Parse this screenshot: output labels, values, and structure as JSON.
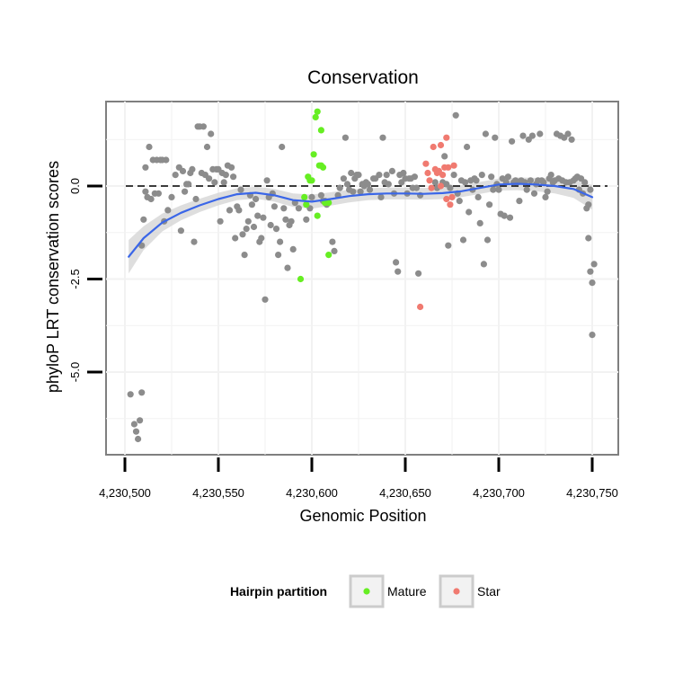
{
  "chart_data": {
    "type": "scatter",
    "title": "Conservation",
    "xlabel": "Genomic Position",
    "ylabel": "phyloP LRT conservation scores",
    "xlim": [
      4230500,
      4230750
    ],
    "ylim": [
      -7.2,
      2.4
    ],
    "x_ticks": [
      4230500,
      4230550,
      4230600,
      4230650,
      4230700,
      4230750
    ],
    "x_tick_labels": [
      "4,230,500",
      "4,230,550",
      "4,230,600",
      "4,230,650",
      "4,230,700",
      "4,230,750"
    ],
    "y_ticks": [
      0.0,
      -2.5,
      -5.0
    ],
    "y_tick_labels": [
      "0.0",
      "-2.5",
      "-5.0"
    ],
    "reference_line": {
      "y": 0.0,
      "style": "dashed"
    },
    "grid": true,
    "legend": {
      "title": "Hairpin partition",
      "position": "bottom",
      "entries": [
        {
          "label": "Mature",
          "color": "#66ee22"
        },
        {
          "label": "Star",
          "color": "#f07a70"
        }
      ]
    },
    "colors": {
      "other": "#8c8c8c",
      "mature": "#66ee22",
      "star": "#f07a70",
      "smooth": "#3a66e8",
      "band": "#d3d3d3"
    },
    "smooth_line": {
      "x": [
        4230502,
        4230510,
        4230520,
        4230530,
        4230540,
        4230550,
        4230560,
        4230570,
        4230580,
        4230590,
        4230600,
        4230610,
        4230620,
        4230630,
        4230640,
        4230650,
        4230660,
        4230670,
        4230680,
        4230690,
        4230700,
        4230710,
        4230720,
        4230730,
        4230740,
        4230750
      ],
      "y": [
        -1.9,
        -1.4,
        -0.98,
        -0.72,
        -0.52,
        -0.35,
        -0.22,
        -0.18,
        -0.25,
        -0.38,
        -0.42,
        -0.35,
        -0.27,
        -0.22,
        -0.2,
        -0.2,
        -0.21,
        -0.19,
        -0.14,
        -0.05,
        0.04,
        0.06,
        0.04,
        0.0,
        -0.08,
        -0.3
      ],
      "band_halfwidth": [
        0.45,
        0.32,
        0.24,
        0.2,
        0.18,
        0.17,
        0.16,
        0.16,
        0.17,
        0.18,
        0.19,
        0.18,
        0.17,
        0.16,
        0.16,
        0.16,
        0.16,
        0.16,
        0.16,
        0.16,
        0.16,
        0.17,
        0.18,
        0.2,
        0.24,
        0.33
      ]
    },
    "series": [
      {
        "name": "Other",
        "color": "#8c8c8c",
        "points": [
          [
            4230503,
            -5.6
          ],
          [
            4230505,
            -6.4
          ],
          [
            4230506,
            -6.6
          ],
          [
            4230507,
            -6.8
          ],
          [
            4230508,
            -6.3
          ],
          [
            4230509,
            -5.55
          ],
          [
            4230509,
            -1.6
          ],
          [
            4230510,
            -0.9
          ],
          [
            4230511,
            0.5
          ],
          [
            4230511,
            -0.15
          ],
          [
            4230512,
            -0.3
          ],
          [
            4230513,
            1.05
          ],
          [
            4230514,
            -0.35
          ],
          [
            4230515,
            0.7
          ],
          [
            4230516,
            -0.2
          ],
          [
            4230517,
            0.7
          ],
          [
            4230518,
            -0.2
          ],
          [
            4230519,
            0.7
          ],
          [
            4230520,
            0.7
          ],
          [
            4230521,
            -0.95
          ],
          [
            4230522,
            0.7
          ],
          [
            4230523,
            -0.65
          ],
          [
            4230525,
            -0.3
          ],
          [
            4230527,
            0.3
          ],
          [
            4230529,
            0.5
          ],
          [
            4230530,
            -1.2
          ],
          [
            4230531,
            0.4
          ],
          [
            4230532,
            -0.15
          ],
          [
            4230533,
            0.05
          ],
          [
            4230534,
            0.05
          ],
          [
            4230535,
            0.35
          ],
          [
            4230536,
            0.45
          ],
          [
            4230537,
            -1.5
          ],
          [
            4230538,
            -0.35
          ],
          [
            4230539,
            1.6
          ],
          [
            4230540,
            1.6
          ],
          [
            4230541,
            0.35
          ],
          [
            4230542,
            1.6
          ],
          [
            4230543,
            0.3
          ],
          [
            4230544,
            1.05
          ],
          [
            4230545,
            0.2
          ],
          [
            4230546,
            1.4
          ],
          [
            4230547,
            0.45
          ],
          [
            4230548,
            0.1
          ],
          [
            4230549,
            0.45
          ],
          [
            4230550,
            0.45
          ],
          [
            4230551,
            -0.95
          ],
          [
            4230552,
            0.35
          ],
          [
            4230553,
            0.1
          ],
          [
            4230554,
            0.3
          ],
          [
            4230555,
            0.55
          ],
          [
            4230556,
            -0.65
          ],
          [
            4230557,
            0.5
          ],
          [
            4230558,
            0.25
          ],
          [
            4230559,
            -1.4
          ],
          [
            4230560,
            -0.55
          ],
          [
            4230561,
            -0.65
          ],
          [
            4230562,
            -0.1
          ],
          [
            4230563,
            -1.3
          ],
          [
            4230564,
            -1.85
          ],
          [
            4230565,
            -1.15
          ],
          [
            4230566,
            -0.95
          ],
          [
            4230567,
            -0.25
          ],
          [
            4230568,
            -0.5
          ],
          [
            4230569,
            -1.1
          ],
          [
            4230570,
            -0.35
          ],
          [
            4230571,
            -0.8
          ],
          [
            4230572,
            -1.5
          ],
          [
            4230573,
            -1.4
          ],
          [
            4230574,
            -0.85
          ],
          [
            4230575,
            -3.05
          ],
          [
            4230576,
            0.15
          ],
          [
            4230577,
            -0.3
          ],
          [
            4230578,
            -1.05
          ],
          [
            4230579,
            -0.2
          ],
          [
            4230580,
            -0.55
          ],
          [
            4230581,
            -1.15
          ],
          [
            4230582,
            -1.85
          ],
          [
            4230583,
            -1.5
          ],
          [
            4230584,
            1.05
          ],
          [
            4230585,
            -0.6
          ],
          [
            4230586,
            -0.9
          ],
          [
            4230587,
            -2.2
          ],
          [
            4230588,
            -1.05
          ],
          [
            4230589,
            -0.95
          ],
          [
            4230590,
            -1.7
          ],
          [
            4230591,
            -0.45
          ],
          [
            4230593,
            -0.6
          ],
          [
            4230597,
            -0.9
          ],
          [
            4230599,
            -0.6
          ],
          [
            4230600,
            -0.3
          ],
          [
            4230605,
            -0.25
          ],
          [
            4230606,
            -0.4
          ],
          [
            4230607,
            -0.4
          ],
          [
            4230608,
            -0.5
          ],
          [
            4230611,
            -1.5
          ],
          [
            4230612,
            -1.75
          ],
          [
            4230614,
            -0.25
          ],
          [
            4230615,
            -0.05
          ],
          [
            4230617,
            0.2
          ],
          [
            4230618,
            1.3
          ],
          [
            4230619,
            0.05
          ],
          [
            4230620,
            -0.1
          ],
          [
            4230621,
            0.35
          ],
          [
            4230622,
            -0.15
          ],
          [
            4230623,
            0.2
          ],
          [
            4230624,
            0.3
          ],
          [
            4230625,
            0.3
          ],
          [
            4230626,
            -0.15
          ],
          [
            4230627,
            0.05
          ],
          [
            4230628,
            0.0
          ],
          [
            4230629,
            0.1
          ],
          [
            4230630,
            0.05
          ],
          [
            4230631,
            -0.1
          ],
          [
            4230633,
            0.2
          ],
          [
            4230634,
            0.2
          ],
          [
            4230636,
            0.3
          ],
          [
            4230637,
            -0.3
          ],
          [
            4230638,
            1.3
          ],
          [
            4230639,
            0.1
          ],
          [
            4230640,
            0.3
          ],
          [
            4230641,
            0.05
          ],
          [
            4230643,
            0.4
          ],
          [
            4230644,
            -0.2
          ],
          [
            4230645,
            -2.05
          ],
          [
            4230646,
            -2.3
          ],
          [
            4230647,
            0.3
          ],
          [
            4230648,
            0.1
          ],
          [
            4230649,
            0.35
          ],
          [
            4230650,
            0.2
          ],
          [
            4230651,
            -0.2
          ],
          [
            4230652,
            0.2
          ],
          [
            4230653,
            0.2
          ],
          [
            4230654,
            -0.05
          ],
          [
            4230655,
            0.25
          ],
          [
            4230656,
            -0.05
          ],
          [
            4230657,
            -2.35
          ],
          [
            4230658,
            -0.25
          ],
          [
            4230666,
            0.1
          ],
          [
            4230667,
            -0.05
          ],
          [
            4230670,
            0.1
          ],
          [
            4230671,
            0.8
          ],
          [
            4230672,
            0.05
          ],
          [
            4230673,
            -1.6
          ],
          [
            4230674,
            -0.05
          ],
          [
            4230676,
            0.3
          ],
          [
            4230677,
            1.9
          ],
          [
            4230678,
            -0.2
          ],
          [
            4230679,
            -0.4
          ],
          [
            4230680,
            0.15
          ],
          [
            4230681,
            -1.45
          ],
          [
            4230682,
            0.1
          ],
          [
            4230683,
            1.05
          ],
          [
            4230684,
            -0.7
          ],
          [
            4230685,
            0.15
          ],
          [
            4230686,
            -0.1
          ],
          [
            4230687,
            0.2
          ],
          [
            4230688,
            0.15
          ],
          [
            4230689,
            -0.3
          ],
          [
            4230690,
            -1.0
          ],
          [
            4230691,
            0.3
          ],
          [
            4230692,
            -2.1
          ],
          [
            4230693,
            1.4
          ],
          [
            4230694,
            -1.45
          ],
          [
            4230695,
            -0.5
          ],
          [
            4230696,
            0.25
          ],
          [
            4230697,
            -0.1
          ],
          [
            4230698,
            1.3
          ],
          [
            4230699,
            0.05
          ],
          [
            4230700,
            -0.1
          ],
          [
            4230701,
            -0.75
          ],
          [
            4230702,
            0.2
          ],
          [
            4230703,
            -0.8
          ],
          [
            4230704,
            0.1
          ],
          [
            4230705,
            0.25
          ],
          [
            4230706,
            -0.85
          ],
          [
            4230707,
            1.2
          ],
          [
            4230708,
            0.1
          ],
          [
            4230709,
            0.15
          ],
          [
            4230710,
            0.1
          ],
          [
            4230711,
            -0.4
          ],
          [
            4230712,
            0.15
          ],
          [
            4230713,
            1.35
          ],
          [
            4230714,
            0.1
          ],
          [
            4230715,
            -0.1
          ],
          [
            4230716,
            1.25
          ],
          [
            4230717,
            0.15
          ],
          [
            4230718,
            1.35
          ],
          [
            4230719,
            -0.2
          ],
          [
            4230720,
            0.05
          ],
          [
            4230721,
            0.15
          ],
          [
            4230722,
            1.4
          ],
          [
            4230723,
            0.15
          ],
          [
            4230724,
            0.1
          ],
          [
            4230725,
            -0.3
          ],
          [
            4230726,
            -0.15
          ],
          [
            4230727,
            0.2
          ],
          [
            4230728,
            0.3
          ],
          [
            4230729,
            0.1
          ],
          [
            4230730,
            0.15
          ],
          [
            4230731,
            1.4
          ],
          [
            4230732,
            0.2
          ],
          [
            4230733,
            1.35
          ],
          [
            4230734,
            0.15
          ],
          [
            4230735,
            1.3
          ],
          [
            4230736,
            0.1
          ],
          [
            4230737,
            1.4
          ],
          [
            4230738,
            0.1
          ],
          [
            4230739,
            1.25
          ],
          [
            4230740,
            0.15
          ],
          [
            4230741,
            0.2
          ],
          [
            4230742,
            0.25
          ],
          [
            4230743,
            -0.1
          ],
          [
            4230744,
            0.2
          ],
          [
            4230745,
            -0.2
          ],
          [
            4230746,
            0.1
          ],
          [
            4230747,
            -0.6
          ],
          [
            4230748,
            -0.5
          ],
          [
            4230749,
            -2.3
          ],
          [
            4230750,
            -2.6
          ],
          [
            4230751,
            -2.1
          ],
          [
            4230750,
            -4.0
          ],
          [
            4230749,
            -0.1
          ],
          [
            4230748,
            -1.4
          ]
        ]
      },
      {
        "name": "Mature",
        "color": "#66ee22",
        "points": [
          [
            4230594,
            -2.5
          ],
          [
            4230596,
            -0.3
          ],
          [
            4230597,
            -0.5
          ],
          [
            4230598,
            0.25
          ],
          [
            4230599,
            0.15
          ],
          [
            4230600,
            0.15
          ],
          [
            4230601,
            0.85
          ],
          [
            4230602,
            1.85
          ],
          [
            4230603,
            2.0
          ],
          [
            4230604,
            0.55
          ],
          [
            4230605,
            0.55
          ],
          [
            4230606,
            0.5
          ],
          [
            4230603,
            -0.8
          ],
          [
            4230605,
            1.5
          ],
          [
            4230607,
            -0.45
          ],
          [
            4230609,
            -1.85
          ],
          [
            4230609,
            -0.45
          ]
        ]
      },
      {
        "name": "Star",
        "color": "#f07a70",
        "points": [
          [
            4230658,
            -3.25
          ],
          [
            4230661,
            0.6
          ],
          [
            4230662,
            0.35
          ],
          [
            4230663,
            0.15
          ],
          [
            4230664,
            -0.05
          ],
          [
            4230665,
            1.05
          ],
          [
            4230666,
            0.45
          ],
          [
            4230667,
            0.35
          ],
          [
            4230668,
            0.4
          ],
          [
            4230669,
            1.1
          ],
          [
            4230670,
            0.3
          ],
          [
            4230671,
            0.5
          ],
          [
            4230672,
            1.3
          ],
          [
            4230673,
            0.5
          ],
          [
            4230674,
            -0.5
          ],
          [
            4230675,
            -0.3
          ],
          [
            4230676,
            0.55
          ],
          [
            4230669,
            0.0
          ],
          [
            4230672,
            -0.35
          ]
        ]
      }
    ]
  }
}
